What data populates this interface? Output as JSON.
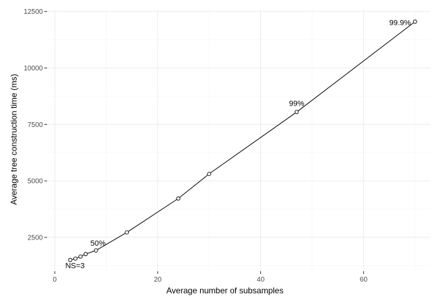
{
  "chart_data": {
    "type": "line",
    "title": "",
    "xlabel": "Average number of subsamples",
    "ylabel": "Average tree construction time (ms)",
    "xlim": [
      -1.5,
      73
    ],
    "ylim": [
      1000,
      12550
    ],
    "x_ticks": [
      0,
      20,
      40,
      60
    ],
    "y_ticks": [
      2500,
      5000,
      7500,
      10000,
      12500
    ],
    "x_tick_labels": [
      "0",
      "20",
      "40",
      "60"
    ],
    "y_tick_labels": [
      "2500",
      "5000",
      "7500",
      "10000",
      "12500"
    ],
    "grid": true,
    "markers": "open-circle",
    "series": [
      {
        "x": [
          3,
          4,
          5,
          6,
          8,
          14,
          24,
          30,
          47,
          70
        ],
        "y": [
          1500,
          1560,
          1650,
          1760,
          1920,
          2720,
          4220,
          5310,
          8050,
          12050
        ]
      }
    ],
    "annotations": [
      {
        "text": "NS=3",
        "x": 3,
        "y": 1500
      },
      {
        "text": "50%",
        "x": 8,
        "y": 1920
      },
      {
        "text": "99%",
        "x": 47,
        "y": 8050
      },
      {
        "text": "99.9%",
        "x": 70,
        "y": 12050
      }
    ]
  },
  "colors": {
    "line": "#000000",
    "marker_stroke": "#000000",
    "marker_fill": "#ffffff",
    "grid_major": "#ebebeb",
    "grid_minor": "#f5f5f5",
    "tick_label": "#4d4d4d",
    "axis_title": "#000000",
    "tick_mark": "#333333"
  }
}
